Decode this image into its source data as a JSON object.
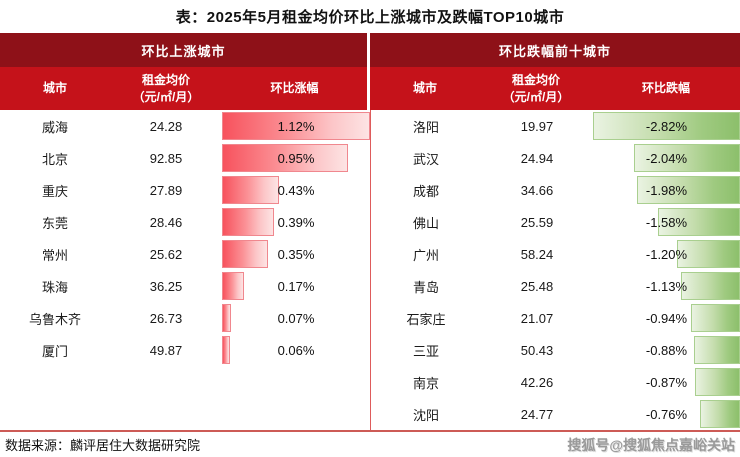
{
  "title": "表：2025年5月租金均价环比上涨城市及跌幅TOP10城市",
  "panels": {
    "up": {
      "header": "环比上涨城市",
      "columns": {
        "city": "城市",
        "price_line1": "租金均价",
        "price_line2": "（元/㎡/月）",
        "change": "环比涨幅"
      },
      "rows": [
        {
          "city": "威海",
          "price": "24.28",
          "change": "1.12%",
          "magnitude": 1.12
        },
        {
          "city": "北京",
          "price": "92.85",
          "change": "0.95%",
          "magnitude": 0.95
        },
        {
          "city": "重庆",
          "price": "27.89",
          "change": "0.43%",
          "magnitude": 0.43
        },
        {
          "city": "东莞",
          "price": "28.46",
          "change": "0.39%",
          "magnitude": 0.39
        },
        {
          "city": "常州",
          "price": "25.62",
          "change": "0.35%",
          "magnitude": 0.35
        },
        {
          "city": "珠海",
          "price": "36.25",
          "change": "0.17%",
          "magnitude": 0.17
        },
        {
          "city": "乌鲁木齐",
          "price": "26.73",
          "change": "0.07%",
          "magnitude": 0.07
        },
        {
          "city": "厦门",
          "price": "49.87",
          "change": "0.06%",
          "magnitude": 0.06
        }
      ]
    },
    "down": {
      "header": "环比跌幅前十城市",
      "columns": {
        "city": "城市",
        "price_line1": "租金均价",
        "price_line2": "（元/㎡/月）",
        "change": "环比跌幅"
      },
      "rows": [
        {
          "city": "洛阳",
          "price": "19.97",
          "change": "-2.82%",
          "magnitude": 2.82
        },
        {
          "city": "武汉",
          "price": "24.94",
          "change": "-2.04%",
          "magnitude": 2.04
        },
        {
          "city": "成都",
          "price": "34.66",
          "change": "-1.98%",
          "magnitude": 1.98
        },
        {
          "city": "佛山",
          "price": "25.59",
          "change": "-1.58%",
          "magnitude": 1.58
        },
        {
          "city": "广州",
          "price": "58.24",
          "change": "-1.20%",
          "magnitude": 1.2
        },
        {
          "city": "青岛",
          "price": "25.48",
          "change": "-1.13%",
          "magnitude": 1.13
        },
        {
          "city": "石家庄",
          "price": "21.07",
          "change": "-0.94%",
          "magnitude": 0.94
        },
        {
          "city": "三亚",
          "price": "50.43",
          "change": "-0.88%",
          "magnitude": 0.88
        },
        {
          "city": "南京",
          "price": "42.26",
          "change": "-0.87%",
          "magnitude": 0.87
        },
        {
          "city": "沈阳",
          "price": "24.77",
          "change": "-0.76%",
          "magnitude": 0.76
        }
      ]
    }
  },
  "footer": {
    "source": "数据来源：麟评居住大数据研究院",
    "watermark": "搜狐号@搜狐焦点嘉峪关站"
  },
  "colors": {
    "band_dark": "#8e1118",
    "band_red": "#c5121a",
    "bar_up_start": "#f7525d",
    "bar_up_end": "#fde4e4",
    "bar_down_start": "#eaf3e2",
    "bar_down_end": "#8cbf6b",
    "divider": "#de5b5b",
    "bottom_rule": "#cd5b56"
  },
  "chart_data": [
    {
      "type": "bar",
      "orientation": "horizontal",
      "title": "环比上涨城市",
      "xlabel": "环比涨幅(%)",
      "ylabel": "城市",
      "categories": [
        "威海",
        "北京",
        "重庆",
        "东莞",
        "常州",
        "珠海",
        "乌鲁木齐",
        "厦门"
      ],
      "series": [
        {
          "name": "租金均价（元/㎡/月）",
          "values": [
            24.28,
            92.85,
            27.89,
            28.46,
            25.62,
            36.25,
            26.73,
            49.87
          ]
        },
        {
          "name": "环比涨幅(%)",
          "values": [
            1.12,
            0.95,
            0.43,
            0.39,
            0.35,
            0.17,
            0.07,
            0.06
          ]
        }
      ],
      "xlim": [
        0,
        1.12
      ],
      "grid": false,
      "legend_position": "none"
    },
    {
      "type": "bar",
      "orientation": "horizontal",
      "title": "环比跌幅前十城市",
      "xlabel": "环比跌幅(%)",
      "ylabel": "城市",
      "categories": [
        "洛阳",
        "武汉",
        "成都",
        "佛山",
        "广州",
        "青岛",
        "石家庄",
        "三亚",
        "南京",
        "沈阳"
      ],
      "series": [
        {
          "name": "租金均价（元/㎡/月）",
          "values": [
            19.97,
            24.94,
            34.66,
            25.59,
            58.24,
            25.48,
            21.07,
            50.43,
            42.26,
            24.77
          ]
        },
        {
          "name": "环比跌幅(%)",
          "values": [
            -2.82,
            -2.04,
            -1.98,
            -1.58,
            -1.2,
            -1.13,
            -0.94,
            -0.88,
            -0.87,
            -0.76
          ]
        }
      ],
      "xlim": [
        -2.82,
        0
      ],
      "grid": false,
      "legend_position": "none"
    }
  ]
}
